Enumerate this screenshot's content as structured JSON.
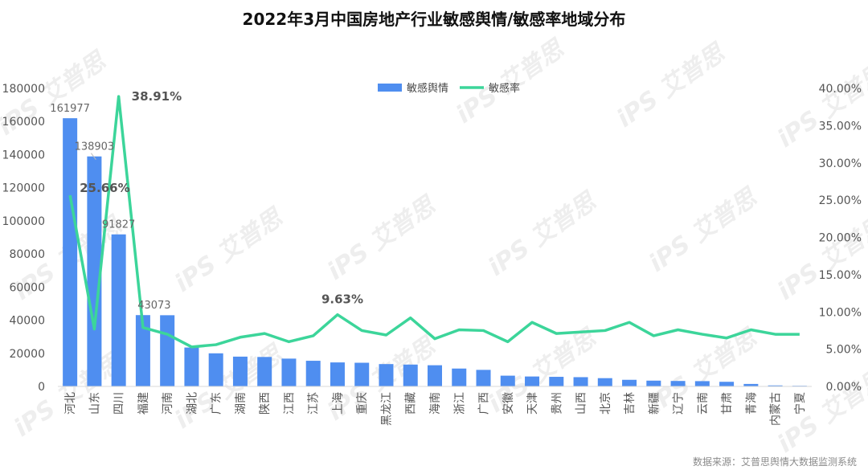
{
  "title": "2022年3月中国房地产行业敏感舆情/敏感率地域分布",
  "source": "数据来源：艾普思舆情大数据监测系统",
  "watermark": "iPS 艾普思",
  "chart_data": {
    "type": "bar",
    "title": "2022年3月中国房地产行业敏感舆情/敏感率地域分布",
    "categories": [
      "河北",
      "山东",
      "四川",
      "福建",
      "河南",
      "湖北",
      "广东",
      "湖南",
      "陕西",
      "江西",
      "江苏",
      "上海",
      "重庆",
      "黑龙江",
      "西藏",
      "海南",
      "浙江",
      "广西",
      "安徽",
      "天津",
      "贵州",
      "山西",
      "北京",
      "吉林",
      "新疆",
      "辽宁",
      "云南",
      "甘肃",
      "青海",
      "内蒙古",
      "宁夏"
    ],
    "series": [
      {
        "name": "敏感舆情",
        "type": "bar",
        "axis": "left",
        "color": "#4f8ef0",
        "values": [
          161977,
          138903,
          91827,
          43073,
          43000,
          23500,
          20000,
          18000,
          17800,
          16800,
          15500,
          14500,
          14300,
          13500,
          13200,
          12800,
          10800,
          10000,
          6500,
          6000,
          5800,
          5600,
          5000,
          4000,
          3500,
          3300,
          3200,
          2800,
          1500,
          600,
          400
        ]
      },
      {
        "name": "敏感率",
        "type": "line",
        "axis": "right",
        "color": "#3cd59a",
        "values": [
          25.66,
          7.7,
          38.91,
          7.9,
          7.0,
          5.3,
          5.6,
          6.6,
          7.1,
          6.0,
          6.8,
          9.63,
          7.5,
          6.9,
          9.2,
          6.4,
          7.6,
          7.5,
          6.0,
          8.6,
          7.1,
          7.3,
          7.5,
          8.6,
          6.8,
          7.6,
          7.0,
          6.5,
          7.6,
          7.0,
          7.0
        ]
      }
    ],
    "data_labels": [
      {
        "series": "敏感舆情",
        "category": "河北",
        "text": "161977"
      },
      {
        "series": "敏感舆情",
        "category": "山东",
        "text": "138903"
      },
      {
        "series": "敏感舆情",
        "category": "四川",
        "text": "91827"
      },
      {
        "series": "敏感舆情",
        "category": "福建",
        "text": "43073"
      },
      {
        "series": "敏感率",
        "category": "四川",
        "text": "38.91%"
      },
      {
        "series": "敏感率",
        "category": "河北",
        "text": "25.66%"
      },
      {
        "series": "敏感率",
        "category": "上海",
        "text": "9.63%"
      }
    ],
    "y_left": {
      "min": 0,
      "max": 180000,
      "ticks": [
        "0",
        "20000",
        "40000",
        "60000",
        "80000",
        "100000",
        "120000",
        "140000",
        "160000",
        "180000"
      ]
    },
    "y_right": {
      "min": 0,
      "max": 40,
      "ticks": [
        "0.00%",
        "5.00%",
        "10.00%",
        "15.00%",
        "20.00%",
        "25.00%",
        "30.00%",
        "35.00%",
        "40.00%"
      ]
    },
    "legend": {
      "position": "top-center",
      "items": [
        "敏感舆情",
        "敏感率"
      ]
    },
    "grid": false
  }
}
